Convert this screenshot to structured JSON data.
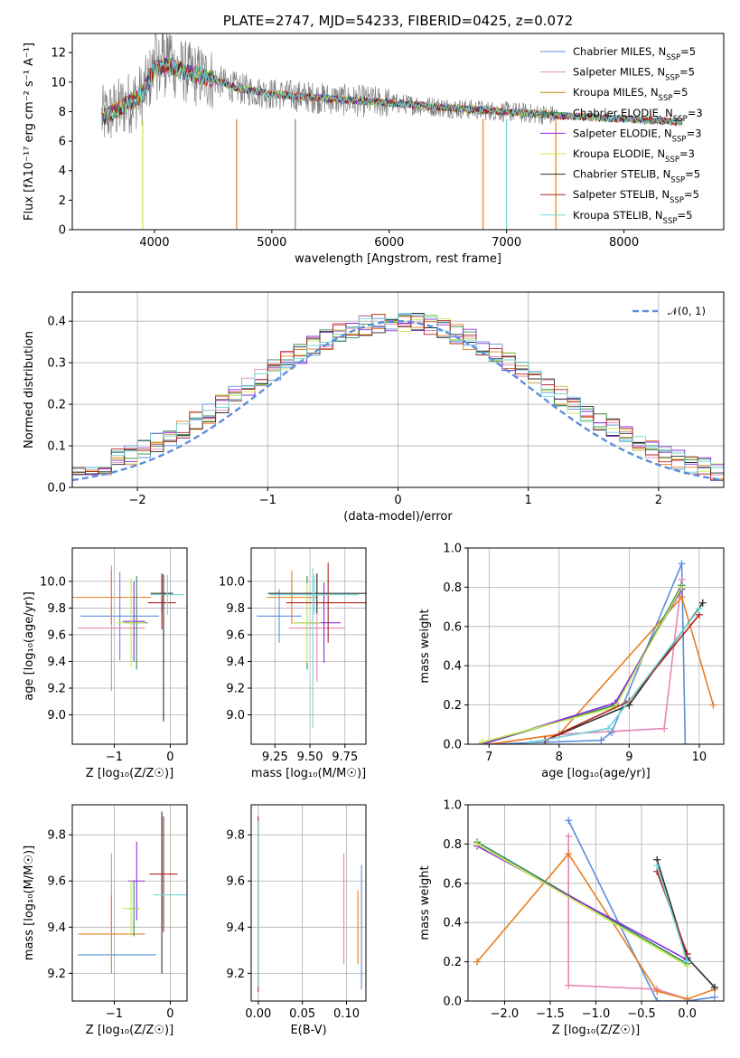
{
  "chart_data": [
    {
      "id": "spectrum",
      "type": "line",
      "title": "PLATE=2747, MJD=54233, FIBERID=0425, z=0.072",
      "xlabel": "wavelength [Angstrom, rest frame]",
      "ylabel": "Flux [fλ10⁻¹⁷ erg cm⁻² s⁻¹ A⁻¹]",
      "xlim": [
        3300,
        8850
      ],
      "ylim": [
        0,
        13.3
      ],
      "xticks": [
        4000,
        5000,
        6000,
        7000,
        8000
      ],
      "yticks": [
        0,
        2,
        4,
        6,
        8,
        10,
        12
      ],
      "grid": false,
      "legend_position": "top-right",
      "observed_color": "#808080",
      "series": [
        {
          "name": "Chabrier MILES, N",
          "sub": "SSP",
          "suffix": "=5",
          "color": "#5b8fd9"
        },
        {
          "name": "Salpeter MILES, N",
          "sub": "SSP",
          "suffix": "=5",
          "color": "#e586b6"
        },
        {
          "name": "Kroupa MILES, N",
          "sub": "SSP",
          "suffix": "=5",
          "color": "#b8860b"
        },
        {
          "name": "Chabrier ELODIE, N",
          "sub": "SSP",
          "suffix": "=3",
          "color": "#2e8b57"
        },
        {
          "name": "Salpeter ELODIE, N",
          "sub": "SSP",
          "suffix": "=3",
          "color": "#8a2be2"
        },
        {
          "name": "Kroupa ELODIE, N",
          "sub": "SSP",
          "suffix": "=3",
          "color": "#c7e84c"
        },
        {
          "name": "Chabrier STELIB, N",
          "sub": "SSP",
          "suffix": "=5",
          "color": "#2f2f2f"
        },
        {
          "name": "Salpeter STELIB, N",
          "sub": "SSP",
          "suffix": "=5",
          "color": "#b22222"
        },
        {
          "name": "Kroupa STELIB, N",
          "sub": "SSP",
          "suffix": "=5",
          "color": "#6fd6d6"
        }
      ],
      "shape": {
        "x": [
          3550,
          3700,
          3900,
          4000,
          4100,
          4300,
          4500,
          4700,
          5000,
          5300,
          5600,
          6000,
          6300,
          6600,
          7000,
          7500,
          8000,
          8500
        ],
        "y": [
          7.6,
          8.2,
          9.2,
          10.9,
          11.2,
          10.6,
          10.2,
          9.6,
          9.2,
          9.0,
          8.8,
          8.6,
          8.4,
          8.2,
          8.0,
          7.7,
          7.5,
          7.3
        ]
      }
    },
    {
      "id": "residuals",
      "type": "line",
      "xlabel": "(data-model)/error",
      "ylabel": "Normed distribution",
      "xlim": [
        -2.5,
        2.5
      ],
      "ylim": [
        0,
        0.47
      ],
      "xticks": [
        -2,
        -1,
        0,
        1,
        2
      ],
      "yticks": [
        0.0,
        0.1,
        0.2,
        0.3,
        0.4
      ],
      "grid": true,
      "legend_position": "top-right",
      "normal_label": "𝒩(0, 1)",
      "normal_color": "#5b8fd9"
    },
    {
      "id": "age_vs_Z",
      "type": "scatter",
      "xlabel": "Z [log₁₀(Z/Z☉)]",
      "ylabel": "age  [log₁₀(age/yr)]",
      "xlim": [
        -1.75,
        0.3
      ],
      "ylim": [
        8.78,
        10.25
      ],
      "xticks": [
        -1,
        0
      ],
      "yticks": [
        9.0,
        9.2,
        9.4,
        9.6,
        9.8,
        10.0
      ],
      "points": [
        {
          "x": -0.9,
          "y": 9.74,
          "xerr": 0.7,
          "yerr": 0.33,
          "color": "#5b8fd9"
        },
        {
          "x": -1.05,
          "y": 9.65,
          "xerr": 0.6,
          "yerr": 0.47,
          "color": "#e586b6"
        },
        {
          "x": -1.05,
          "y": 9.88,
          "xerr": 0.7,
          "yerr": 0.2,
          "color": "#e67e22"
        },
        {
          "x": -0.6,
          "y": 9.69,
          "xerr": 0.2,
          "yerr": 0.35,
          "color": "#2e8b57"
        },
        {
          "x": -0.65,
          "y": 9.7,
          "xerr": 0.2,
          "yerr": 0.3,
          "color": "#8a2be2"
        },
        {
          "x": -0.7,
          "y": 9.69,
          "xerr": 0.25,
          "yerr": 0.33,
          "color": "#c7e84c"
        },
        {
          "x": -0.15,
          "y": 9.91,
          "xerr": 0.2,
          "yerr": 0.15,
          "color": "#2f2f2f"
        },
        {
          "x": -0.15,
          "y": 9.84,
          "xerr": 0.25,
          "yerr": 0.2,
          "color": "#b22222"
        },
        {
          "x": -0.05,
          "y": 9.9,
          "xerr": 0.3,
          "yerr": 0.15,
          "color": "#6fd6d6"
        },
        {
          "x": -0.12,
          "y": 9.5,
          "xerr": 0.0,
          "yerr": 0.55,
          "color": "#2f2f2f"
        }
      ]
    },
    {
      "id": "age_vs_mass",
      "type": "scatter",
      "xlabel": "mass [log₁₀(M/M☉)]",
      "ylabel": "",
      "xlim": [
        9.08,
        9.9
      ],
      "ylim": [
        8.78,
        10.25
      ],
      "xticks": [
        9.25,
        9.5,
        9.75
      ],
      "xtick_labels": [
        "9.25",
        "9.50",
        "9.75"
      ],
      "yticks": [
        9.0,
        9.2,
        9.4,
        9.6,
        9.8,
        10.0
      ],
      "points": [
        {
          "x": 9.28,
          "y": 9.74,
          "xerr": 0.16,
          "yerr": 0.2,
          "color": "#5b8fd9"
        },
        {
          "x": 9.55,
          "y": 9.65,
          "xerr": 0.2,
          "yerr": 0.4,
          "color": "#e586b6"
        },
        {
          "x": 9.37,
          "y": 9.88,
          "xerr": 0.18,
          "yerr": 0.2,
          "color": "#e67e22"
        },
        {
          "x": 9.48,
          "y": 9.69,
          "xerr": 0.1,
          "yerr": 0.35,
          "color": "#2e8b57"
        },
        {
          "x": 9.6,
          "y": 9.69,
          "xerr": 0.12,
          "yerr": 0.3,
          "color": "#8a2be2"
        },
        {
          "x": 9.48,
          "y": 9.69,
          "xerr": 0.1,
          "yerr": 0.3,
          "color": "#c7e84c"
        },
        {
          "x": 9.55,
          "y": 9.91,
          "xerr": 0.35,
          "yerr": 0.15,
          "color": "#2f2f2f"
        },
        {
          "x": 9.63,
          "y": 9.84,
          "xerr": 0.3,
          "yerr": 0.3,
          "color": "#b22222"
        },
        {
          "x": 9.53,
          "y": 9.9,
          "xerr": 0.32,
          "yerr": 0.15,
          "color": "#6fd6d6"
        },
        {
          "x": 9.52,
          "y": 9.5,
          "xerr": 0.0,
          "yerr": 0.6,
          "color": "#6fd6d6"
        }
      ]
    },
    {
      "id": "weight_vs_age",
      "type": "line",
      "xlabel": "age  [log₁₀(age/yr)]",
      "ylabel": "mass weight",
      "xlim": [
        6.7,
        10.35
      ],
      "ylim": [
        0,
        1.0
      ],
      "xticks": [
        7,
        8,
        9,
        10
      ],
      "yticks": [
        0.0,
        0.2,
        0.4,
        0.6,
        0.8,
        1.0
      ],
      "tick_format": "1",
      "series": [
        {
          "color": "#5b8fd9",
          "x": [
            7.0,
            8.6,
            8.75,
            9.75,
            9.8
          ],
          "y": [
            0.0,
            0.02,
            0.06,
            0.92,
            0.0
          ]
        },
        {
          "color": "#e586b6",
          "x": [
            7.0,
            8.0,
            9.5,
            9.75
          ],
          "y": [
            0.0,
            0.05,
            0.08,
            0.84
          ]
        },
        {
          "color": "#e67e22",
          "x": [
            7.0,
            8.0,
            9.75,
            10.2
          ],
          "y": [
            0.0,
            0.05,
            0.75,
            0.2
          ]
        },
        {
          "color": "#2e8b57",
          "x": [
            6.9,
            8.8,
            9.75
          ],
          "y": [
            0.0,
            0.2,
            0.81
          ]
        },
        {
          "color": "#8a2be2",
          "x": [
            6.9,
            8.8,
            9.75
          ],
          "y": [
            0.0,
            0.21,
            0.79
          ]
        },
        {
          "color": "#c7e84c",
          "x": [
            6.9,
            8.8,
            9.75
          ],
          "y": [
            0.01,
            0.19,
            0.8
          ]
        },
        {
          "color": "#2f2f2f",
          "x": [
            7.8,
            9.0,
            10.05
          ],
          "y": [
            0.02,
            0.2,
            0.72
          ]
        },
        {
          "color": "#b22222",
          "x": [
            7.8,
            9.0,
            10.0
          ],
          "y": [
            0.02,
            0.22,
            0.66
          ]
        },
        {
          "color": "#6fd6d6",
          "x": [
            7.6,
            8.7,
            10.0
          ],
          "y": [
            0.01,
            0.08,
            0.69
          ]
        }
      ]
    },
    {
      "id": "mass_vs_Z",
      "type": "scatter",
      "xlabel": "Z [log₁₀(Z/Z☉)]",
      "ylabel": "mass [log₁₀(M/M☉)]",
      "xlim": [
        -1.75,
        0.3
      ],
      "ylim": [
        9.08,
        9.93
      ],
      "xticks": [
        -1,
        0
      ],
      "yticks": [
        9.2,
        9.4,
        9.6,
        9.8
      ],
      "points": [
        {
          "x": -0.95,
          "y": 9.28,
          "xerr": 0.7,
          "yerr": 0.0,
          "color": "#5b8fd9"
        },
        {
          "x": -1.05,
          "y": 9.55,
          "xerr": 0.0,
          "yerr": 0.17,
          "color": "#e586b6"
        },
        {
          "x": -1.05,
          "y": 9.37,
          "xerr": 0.6,
          "yerr": 0.17,
          "color": "#e67e22"
        },
        {
          "x": -0.65,
          "y": 9.48,
          "xerr": 0.1,
          "yerr": 0.12,
          "color": "#2e8b57"
        },
        {
          "x": -0.6,
          "y": 9.6,
          "xerr": 0.15,
          "yerr": 0.17,
          "color": "#8a2be2"
        },
        {
          "x": -0.7,
          "y": 9.48,
          "xerr": 0.15,
          "yerr": 0.12,
          "color": "#c7e84c"
        },
        {
          "x": -0.15,
          "y": 9.55,
          "xerr": 0.0,
          "yerr": 0.35,
          "color": "#2f2f2f"
        },
        {
          "x": -0.12,
          "y": 9.63,
          "xerr": 0.25,
          "yerr": 0.25,
          "color": "#b22222"
        },
        {
          "x": 0.0,
          "y": 9.54,
          "xerr": 0.3,
          "yerr": 0.0,
          "color": "#6fd6d6"
        }
      ]
    },
    {
      "id": "mass_vs_EBV",
      "type": "scatter",
      "xlabel": "E(B-V)",
      "ylabel": "",
      "xlim": [
        -0.008,
        0.122
      ],
      "ylim": [
        9.08,
        9.93
      ],
      "xticks": [
        0.0,
        0.05,
        0.1
      ],
      "xtick_labels": [
        "0.00",
        "0.05",
        "0.10"
      ],
      "yticks": [
        9.2,
        9.4,
        9.6,
        9.8
      ],
      "points": [
        {
          "x": 0.0,
          "y": 9.5,
          "xerr": 0.0,
          "yerr": 0.38,
          "color": "#b22222"
        },
        {
          "x": 0.0,
          "y": 9.5,
          "xerr": 0.0,
          "yerr": 0.36,
          "color": "#6fd6d6"
        },
        {
          "x": 0.097,
          "y": 9.48,
          "xerr": 0.0,
          "yerr": 0.24,
          "color": "#e586b6"
        },
        {
          "x": 0.113,
          "y": 9.4,
          "xerr": 0.0,
          "yerr": 0.16,
          "color": "#e67e22"
        },
        {
          "x": 0.117,
          "y": 9.4,
          "xerr": 0.0,
          "yerr": 0.27,
          "color": "#5b8fd9"
        }
      ]
    },
    {
      "id": "weight_vs_Z",
      "type": "line",
      "xlabel": "Z [log₁₀(Z/Z☉)]",
      "ylabel": "mass weight",
      "xlim": [
        -2.4,
        0.4
      ],
      "ylim": [
        0,
        1.0
      ],
      "xticks": [
        -2.0,
        -1.5,
        -1.0,
        -0.5,
        0.0
      ],
      "xtick_labels": [
        "−2.0",
        "−1.5",
        "−1.0",
        "−0.5",
        "0.0"
      ],
      "yticks": [
        0.0,
        0.2,
        0.4,
        0.6,
        0.8,
        1.0
      ],
      "series": [
        {
          "color": "#5b8fd9",
          "x": [
            -1.3,
            -0.33,
            0.0,
            0.3
          ],
          "y": [
            0.92,
            0.0,
            0.0,
            0.02
          ]
        },
        {
          "color": "#e586b6",
          "x": [
            -1.3,
            -1.3,
            -0.33,
            0.0
          ],
          "y": [
            0.84,
            0.08,
            0.06,
            0.01
          ]
        },
        {
          "color": "#e67e22",
          "x": [
            -2.3,
            -1.3,
            -0.33,
            0.0,
            0.3
          ],
          "y": [
            0.2,
            0.75,
            0.05,
            0.01,
            0.06
          ]
        },
        {
          "color": "#2e8b57",
          "x": [
            -2.3,
            0.0
          ],
          "y": [
            0.81,
            0.19
          ]
        },
        {
          "color": "#8a2be2",
          "x": [
            -2.3,
            0.0
          ],
          "y": [
            0.79,
            0.21
          ]
        },
        {
          "color": "#c7e84c",
          "x": [
            -2.3,
            0.0
          ],
          "y": [
            0.8,
            0.18
          ]
        },
        {
          "color": "#2f2f2f",
          "x": [
            -0.33,
            0.0,
            0.3
          ],
          "y": [
            0.72,
            0.22,
            0.07
          ]
        },
        {
          "color": "#b22222",
          "x": [
            -0.33,
            0.0
          ],
          "y": [
            0.66,
            0.24
          ]
        },
        {
          "color": "#6fd6d6",
          "x": [
            -0.33,
            0.0
          ],
          "y": [
            0.69,
            0.2
          ]
        }
      ]
    }
  ]
}
